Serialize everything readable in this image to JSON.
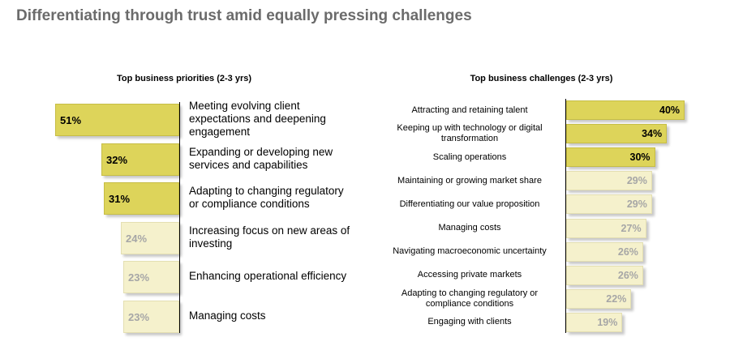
{
  "title": "Differentiating through trust amid equally pressing challenges",
  "chart_data": [
    {
      "type": "bar",
      "orientation": "horizontal",
      "title": "Top business priorities (2-3 yrs)",
      "categories": [
        "Meeting evolving client expectations and deepening engagement",
        "Expanding or developing new services and capabilities",
        "Adapting to changing regulatory or compliance conditions",
        "Increasing focus on new areas of investing",
        "Enhancing operational efficiency",
        "Managing costs"
      ],
      "values": [
        51,
        32,
        31,
        24,
        23,
        23
      ],
      "labels": [
        "51%",
        "32%",
        "31%",
        "24%",
        "23%",
        "23%"
      ],
      "unit": "%",
      "highlighted_top": 3,
      "colors": {
        "highlight": "#ddd45a",
        "muted": "#f5f1cc",
        "muted_text": "#a6a6a6"
      },
      "bar_direction": "right-to-left",
      "legend": "none",
      "grid": false
    },
    {
      "type": "bar",
      "orientation": "horizontal",
      "title": "Top business challenges (2-3 yrs)",
      "categories": [
        "Attracting and retaining talent",
        "Keeping up with technology or digital transformation",
        "Scaling operations",
        "Maintaining or growing market share",
        "Differentiating our value proposition",
        "Managing costs",
        "Navigating macroeconomic uncertainty",
        "Accessing private markets",
        "Adapting to changing regulatory or compliance conditions",
        "Engaging with clients"
      ],
      "values": [
        40,
        34,
        30,
        29,
        29,
        27,
        26,
        26,
        22,
        19
      ],
      "labels": [
        "40%",
        "34%",
        "30%",
        "29%",
        "29%",
        "27%",
        "26%",
        "26%",
        "22%",
        "19%"
      ],
      "unit": "%",
      "highlighted_top": 3,
      "colors": {
        "highlight": "#ddd45a",
        "muted": "#f5f1cc",
        "muted_text": "#a6a6a6"
      },
      "bar_direction": "left-to-right",
      "legend": "none",
      "grid": false
    }
  ]
}
